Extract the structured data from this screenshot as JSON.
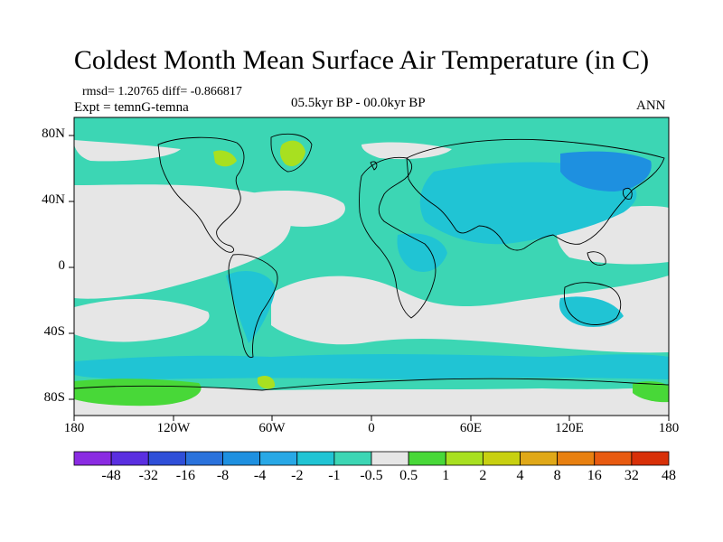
{
  "title": "Coldest Month Mean Surface Air Temperature (in C)",
  "stats": "rmsd= 1.20765 diff= -0.866817",
  "experiment": "Expt = temnG-temna",
  "period": "05.5kyr BP - 00.0kyr BP",
  "season": "ANN",
  "lat_ticks": [
    "80N",
    "40N",
    "0",
    "40S",
    "80S"
  ],
  "lon_ticks": [
    "180",
    "120W",
    "60W",
    "0",
    "60E",
    "120E",
    "180"
  ],
  "colorbar": {
    "labels": [
      "-48",
      "-32",
      "-16",
      "-8",
      "-4",
      "-2",
      "-1",
      "-0.5",
      "0.5",
      "1",
      "2",
      "4",
      "8",
      "16",
      "32",
      "48"
    ],
    "colors": [
      "#8a2be2",
      "#5a2fe0",
      "#2f4fd8",
      "#2a72dc",
      "#1e90e0",
      "#28a8e6",
      "#20c4d4",
      "#3cd6b4",
      "#e6e6e6",
      "#48d838",
      "#a8e020",
      "#c8d010",
      "#e0a818",
      "#e88010",
      "#e85a10",
      "#d83008"
    ]
  },
  "map_colors": {
    "ocean_background": "#3cd6b4",
    "neutral": "#e6e6e6",
    "cooling_moderate": "#20c4d4",
    "cooling_strong": "#28a8e6",
    "cooling_stronger": "#1e90e0",
    "warming_weak": "#48d838",
    "warming_moderate": "#a8e020"
  }
}
